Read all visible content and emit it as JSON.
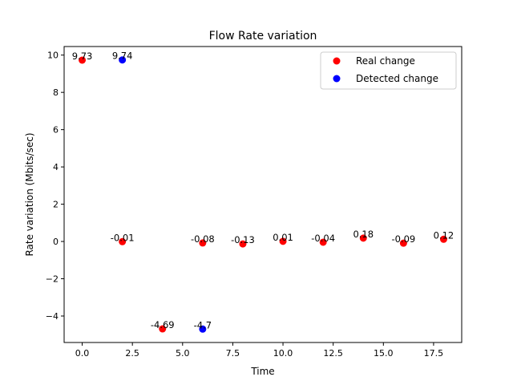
{
  "chart_data": {
    "type": "scatter",
    "title": "Flow Rate variation",
    "xlabel": "Time",
    "ylabel": "Rate variation (Mbits/sec)",
    "xlim": [
      -0.9,
      18.9
    ],
    "ylim": [
      -5.42,
      10.46
    ],
    "xticks": [
      0.0,
      2.5,
      5.0,
      7.5,
      10.0,
      12.5,
      15.0,
      17.5
    ],
    "xtick_labels": [
      "0.0",
      "2.5",
      "5.0",
      "7.5",
      "10.0",
      "12.5",
      "15.0",
      "17.5"
    ],
    "yticks": [
      -4,
      -2,
      0,
      2,
      4,
      6,
      8,
      10
    ],
    "ytick_labels": [
      "−4",
      "−2",
      "0",
      "2",
      "4",
      "6",
      "8",
      "10"
    ],
    "grid": false,
    "legend_position": "top-right",
    "series": [
      {
        "name": "Real change",
        "color": "#ff0000",
        "points": [
          {
            "x": 0,
            "y": 9.73,
            "label": "9.73"
          },
          {
            "x": 2,
            "y": -0.01,
            "label": "-0.01"
          },
          {
            "x": 4,
            "y": -4.69,
            "label": "-4.69"
          },
          {
            "x": 6,
            "y": -0.08,
            "label": "-0.08"
          },
          {
            "x": 8,
            "y": -0.13,
            "label": "-0.13"
          },
          {
            "x": 10,
            "y": 0.01,
            "label": "0.01"
          },
          {
            "x": 12,
            "y": -0.04,
            "label": "-0.04"
          },
          {
            "x": 14,
            "y": 0.18,
            "label": "0.18"
          },
          {
            "x": 16,
            "y": -0.09,
            "label": "-0.09"
          },
          {
            "x": 18,
            "y": 0.12,
            "label": "0.12"
          }
        ]
      },
      {
        "name": "Detected change",
        "color": "#0000ff",
        "points": [
          {
            "x": 2,
            "y": 9.74,
            "label": "9.74"
          },
          {
            "x": 6,
            "y": -4.7,
            "label": "-4.7"
          }
        ]
      }
    ]
  }
}
